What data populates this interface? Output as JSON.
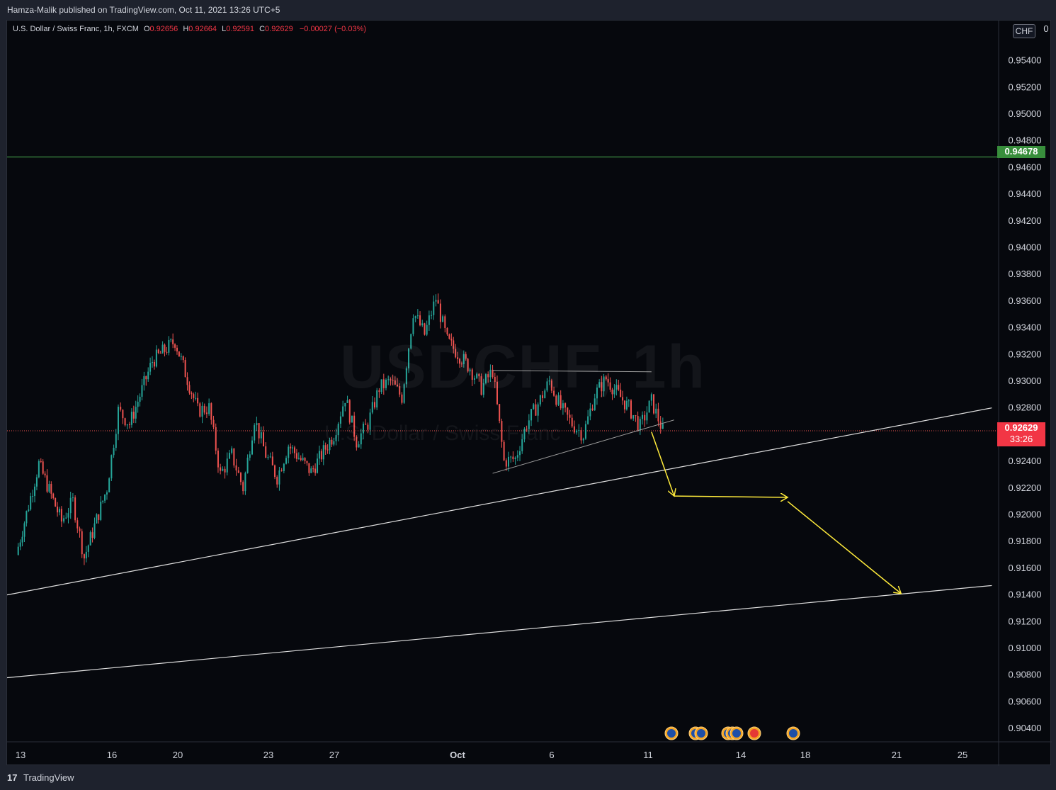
{
  "header": {
    "published_by": "Hamza-Malik published on TradingView.com, Oct 11, 2021 13:26 UTC+5"
  },
  "legend": {
    "symbol_line": "U.S. Dollar / Swiss Franc, 1h, FXCM",
    "open_label": "O",
    "open": "0.92656",
    "high_label": "H",
    "high": "0.92664",
    "low_label": "L",
    "low": "0.92591",
    "close_label": "C",
    "close": "0.92629",
    "change": "−0.00027 (−0.03%)"
  },
  "currency_badge": "CHF",
  "watermark": {
    "ticker": "USDCHF, 1h",
    "name": "U.S. Dollar / Swiss Franc"
  },
  "price_tags": {
    "level": {
      "text": "0.94678",
      "color": "#388e3c"
    },
    "last": {
      "text": "0.92629",
      "countdown": "33:26",
      "color": "#f23645"
    }
  },
  "footer": {
    "logo": "17",
    "brand": "TradingView"
  },
  "colors": {
    "up": "#26a69a",
    "down": "#ef5350",
    "background": "#06080d",
    "grid_text": "#d1d4dc",
    "level_line": "#4caf50",
    "annotation": "#ffeb3b",
    "trendline": "#e0e0e0"
  },
  "chart_data": {
    "type": "candlestick",
    "title": "U.S. Dollar / Swiss Franc, 1h, FXCM",
    "ylim": [
      0.903,
      0.957
    ],
    "y_ticks": [
      "0.95400",
      "0.95200",
      "0.95000",
      "0.94800",
      "0.94600",
      "0.94400",
      "0.94200",
      "0.94000",
      "0.93800",
      "0.93600",
      "0.93400",
      "0.93200",
      "0.93000",
      "0.92800",
      "0.92600",
      "0.92400",
      "0.92200",
      "0.92000",
      "0.91800",
      "0.91600",
      "0.91400",
      "0.91200",
      "0.91000",
      "0.90800",
      "0.90600",
      "0.90400"
    ],
    "y_tick_top_partial": "0.95600",
    "x_ticks": [
      "13",
      "16",
      "20",
      "23",
      "27",
      "Oct",
      "6",
      "11",
      "14",
      "18",
      "21",
      "25"
    ],
    "price_path": [
      [
        "Sep 13",
        0.917
      ],
      [
        "Sep 14",
        0.9238
      ],
      [
        "Sep 15",
        0.9195
      ],
      [
        "Sep 15b",
        0.921
      ],
      [
        "Sep 16",
        0.9168
      ],
      [
        "Sep 17",
        0.922
      ],
      [
        "Sep 17b",
        0.9278
      ],
      [
        "Sep 18",
        0.9268
      ],
      [
        "Sep 19",
        0.9315
      ],
      [
        "Sep 20",
        0.933
      ],
      [
        "Sep 21",
        0.9278
      ],
      [
        "Sep 21b",
        0.928
      ],
      [
        "Sep 22",
        0.923
      ],
      [
        "Sep 22b",
        0.9245
      ],
      [
        "Sep 23",
        0.922
      ],
      [
        "Sep 23b",
        0.9272
      ],
      [
        "Sep 24",
        0.9245
      ],
      [
        "Sep 24b",
        0.9228
      ],
      [
        "Sep 25",
        0.9252
      ],
      [
        "Sep 26",
        0.9232
      ],
      [
        "Sep 27",
        0.926
      ],
      [
        "Sep 27b",
        0.9288
      ],
      [
        "Sep 28",
        0.9255
      ],
      [
        "Sep 28b",
        0.9268
      ],
      [
        "Sep 29",
        0.9295
      ],
      [
        "Sep 29b",
        0.93
      ],
      [
        "Sep 30",
        0.9288
      ],
      [
        "Sep 30b",
        0.9352
      ],
      [
        "Oct 1",
        0.9335
      ],
      [
        "Oct 1b",
        0.9362
      ],
      [
        "Oct 2",
        0.933
      ],
      [
        "Oct 3",
        0.931
      ],
      [
        "Oct 3b",
        0.9295
      ],
      [
        "Oct 4",
        0.9308
      ],
      [
        "Oct 4b",
        0.924
      ],
      [
        "Oct 5",
        0.9242
      ],
      [
        "Oct 5b",
        0.9268
      ],
      [
        "Oct 6",
        0.9283
      ],
      [
        "Oct 6b",
        0.93
      ],
      [
        "Oct 7",
        0.928
      ],
      [
        "Oct 7b",
        0.9268
      ],
      [
        "Oct 8",
        0.926
      ],
      [
        "Oct 8b",
        0.929
      ],
      [
        "Oct 9",
        0.9302
      ],
      [
        "Oct 10",
        0.928
      ],
      [
        "Oct 10b",
        0.9266
      ],
      [
        "Oct 11",
        0.9285
      ],
      [
        "Oct 11b",
        0.92629
      ]
    ],
    "horizontal_levels": [
      {
        "price": 0.94678
      },
      {
        "price": 0.92629
      }
    ],
    "trendlines": [
      {
        "from": [
          "Sep 12",
          0.914
        ],
        "to": [
          "Oct 26",
          0.928
        ]
      },
      {
        "from": [
          "Sep 12",
          0.9078
        ],
        "to": [
          "Oct 26",
          0.9147
        ]
      },
      {
        "from": [
          "Oct 4",
          0.9308
        ],
        "to": [
          "Oct 11",
          0.9307
        ]
      },
      {
        "from": [
          "Oct 4",
          0.9231
        ],
        "to": [
          "Oct 12",
          0.9271
        ]
      }
    ],
    "projection_arrows": [
      {
        "from": [
          "Oct 11",
          0.9262
        ],
        "to": [
          "Oct 12",
          0.9214
        ]
      },
      {
        "from": [
          "Oct 12",
          0.9214
        ],
        "to": [
          "Oct 17",
          0.9213
        ]
      },
      {
        "from": [
          "Oct 17",
          0.921
        ],
        "to": [
          "Oct 22",
          0.9141
        ]
      }
    ],
    "event_markers": [
      "US",
      "US",
      "US",
      "US",
      "US",
      "US",
      "CH",
      "US"
    ],
    "grid": false,
    "legend_position": "top-left"
  }
}
